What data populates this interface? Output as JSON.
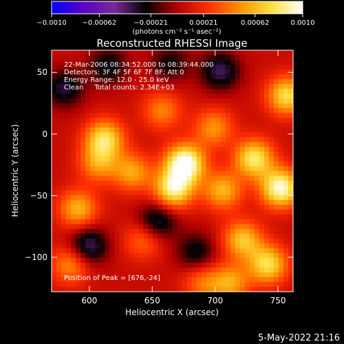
{
  "chart_data": {
    "type": "heatmap",
    "title": "Reconstructed RHESSI Image",
    "xlabel": "Heliocentric X (arcsec)",
    "ylabel": "Heliocentric Y (arcsec)",
    "xlim": [
      570,
      762
    ],
    "ylim": [
      -128,
      68
    ],
    "x_ticks": [
      600,
      650,
      700,
      750
    ],
    "x_tick_labels": [
      "600",
      "650",
      "700",
      "750"
    ],
    "y_ticks": [
      50,
      0,
      -50,
      -100
    ],
    "y_tick_labels": [
      "50",
      "0",
      "−50",
      "−100"
    ],
    "colorbar": {
      "range": [
        -0.001,
        0.001
      ],
      "tick_values": [
        -0.001,
        -0.00062,
        -0.00021,
        0.00021,
        0.00062,
        0.001
      ],
      "tick_labels": [
        "−0.0010",
        "−0.00062",
        "−0.00021",
        "0.00021",
        "0.00062",
        "0.0010"
      ],
      "label": "(photons cm⁻² s⁻¹ asec⁻²)",
      "colormap": [
        "#0000ff",
        "#5a00c8",
        "#7a2a9a",
        "#000000",
        "#b40000",
        "#ff3000",
        "#ff9000",
        "#ffe040",
        "#ffffff"
      ]
    },
    "annotations": [
      "22-Mar-2006 08:34:52.000 to 08:39:44.000",
      "Detectors: 3F 4F 5F 6F 7F 8F; Att 0",
      "Energy Range: 12.0 - 25.0 keV",
      "Clean     Total counts: 2.34E+03"
    ],
    "peak_label": "Position of Peak = [676,-24]",
    "peak_position": [
      676,
      -24
    ],
    "sources": [
      {
        "x": 676,
        "y": -24,
        "v": 1.0
      },
      {
        "x": 667,
        "y": -45,
        "v": 0.8
      },
      {
        "x": 752,
        "y": -44,
        "v": 0.9
      },
      {
        "x": 731,
        "y": -20,
        "v": 0.75
      },
      {
        "x": 757,
        "y": 31,
        "v": 0.7
      },
      {
        "x": 612,
        "y": -4,
        "v": 0.7
      },
      {
        "x": 591,
        "y": -61,
        "v": 0.55
      },
      {
        "x": 634,
        "y": -31,
        "v": 0.5
      },
      {
        "x": 722,
        "y": -86,
        "v": 0.6
      },
      {
        "x": 742,
        "y": -106,
        "v": 0.7
      },
      {
        "x": 706,
        "y": -46,
        "v": 0.55
      },
      {
        "x": 658,
        "y": 19,
        "v": 0.4
      },
      {
        "x": 699,
        "y": 5,
        "v": 0.45
      },
      {
        "x": 643,
        "y": -86,
        "v": 0.35
      },
      {
        "x": 585,
        "y": -106,
        "v": 0.45
      },
      {
        "x": 712,
        "y": -121,
        "v": 0.5
      },
      {
        "x": 607,
        "y": -24,
        "v": 0.45
      },
      {
        "x": 690,
        "y": -121,
        "v": 0.35
      },
      {
        "x": 599,
        "y": -91,
        "v": -0.5
      },
      {
        "x": 654,
        "y": -71,
        "v": -0.45
      },
      {
        "x": 704,
        "y": 51,
        "v": -0.45
      },
      {
        "x": 580,
        "y": 37,
        "v": -0.4
      },
      {
        "x": 615,
        "y": 55,
        "v": -0.35
      },
      {
        "x": 664,
        "y": 57,
        "v": -0.3
      },
      {
        "x": 685,
        "y": -96,
        "v": -0.35
      }
    ]
  },
  "footer_timestamp": "5-May-2022 21:16"
}
